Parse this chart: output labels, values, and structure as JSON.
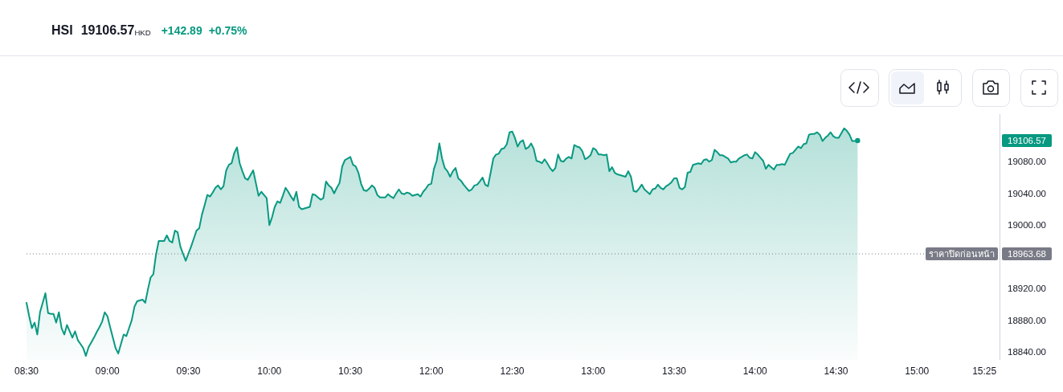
{
  "chart_data": {
    "type": "area",
    "title": "HSI",
    "subtitle": "19106.57$_{HKD}$",
    "annotations": [
      "+142.89",
      "+0.75%",
      "19106.57",
      "18963.68"
    ],
    "color": "#089981",
    "categories": [
      "08:30",
      null,
      null,
      null,
      null,
      null,
      null,
      null,
      null,
      null,
      null,
      null,
      null,
      null,
      null,
      null,
      null,
      null,
      null,
      null,
      null,
      null,
      null,
      null,
      null,
      null,
      null,
      null,
      null,
      null,
      "09:00",
      null,
      null,
      null,
      null,
      null,
      null,
      null,
      null,
      null,
      null,
      null,
      null,
      null,
      null,
      null,
      null,
      null,
      null,
      null,
      null,
      null,
      null,
      null,
      null,
      null,
      null,
      null,
      null,
      null,
      "09:30",
      null,
      null,
      null,
      null,
      null,
      null,
      null,
      null,
      null,
      null,
      null,
      null,
      null,
      null,
      null,
      null,
      null,
      null,
      null,
      null,
      null,
      null,
      null,
      null,
      null,
      null,
      null,
      null,
      null,
      "10:00",
      null,
      null,
      null,
      null,
      null,
      null,
      null,
      null,
      null,
      null,
      null,
      null,
      null,
      null,
      null,
      null,
      null,
      null,
      null,
      null,
      null,
      null,
      null,
      null,
      null,
      null,
      null,
      null,
      null,
      "10:30",
      null,
      null,
      null,
      null,
      null,
      null,
      null,
      null,
      null,
      null,
      null,
      null,
      null,
      null,
      null,
      null,
      null,
      null,
      null,
      null,
      null,
      null,
      null,
      null,
      null,
      null,
      null,
      null,
      null,
      "12:00",
      null,
      null,
      null,
      null,
      null,
      null,
      null,
      null,
      null,
      null,
      null,
      null,
      null,
      null,
      null,
      null,
      null,
      null,
      null,
      null,
      null,
      null,
      null,
      null,
      null,
      null,
      null,
      null,
      null,
      "12:30",
      null,
      null,
      null,
      null,
      null,
      null,
      null,
      null,
      null,
      null,
      null,
      null,
      null,
      null,
      null,
      null,
      null,
      null,
      null,
      null,
      null,
      null,
      null,
      null,
      null,
      null,
      null,
      null,
      null,
      "13:00",
      null,
      null,
      null,
      null,
      null,
      null,
      null,
      null,
      null,
      null,
      null,
      null,
      null,
      null,
      null,
      null,
      null,
      null,
      null,
      null,
      null,
      null,
      null,
      null,
      null,
      null,
      null,
      null,
      null,
      "13:30",
      null,
      null,
      null,
      null,
      null,
      null,
      null,
      null,
      null,
      null,
      null,
      null,
      null,
      null,
      null,
      null,
      null,
      null,
      null,
      null,
      null,
      null,
      null,
      null,
      null,
      null,
      null,
      null,
      null,
      "14:00",
      null,
      null,
      null,
      null,
      null,
      null,
      null,
      null,
      null,
      null,
      null,
      null,
      null,
      null,
      null,
      null,
      null,
      null,
      null,
      null,
      null,
      null,
      null,
      null,
      null,
      null,
      null,
      null,
      null,
      "14:30",
      null,
      null,
      null,
      null,
      null,
      null,
      null,
      null,
      null,
      null,
      null,
      null,
      null,
      null,
      null,
      null,
      null,
      null,
      null,
      null,
      null,
      null,
      null,
      null,
      null,
      null,
      null,
      null,
      null,
      "15:00",
      null,
      null,
      null,
      null,
      null,
      null,
      null,
      null,
      null,
      null,
      null,
      null,
      null,
      null,
      null,
      null,
      null,
      null,
      null,
      null,
      null,
      null,
      null,
      null,
      "15:25",
      null,
      null,
      null,
      null,
      null
    ],
    "values": [
      18902,
      18885,
      18870,
      18877,
      18862,
      18890,
      18902,
      18914,
      18889,
      18888,
      18888,
      18877,
      18890,
      18870,
      18862,
      18874,
      18866,
      18858,
      18866,
      18855,
      18850,
      18845,
      18835,
      18846,
      18852,
      18858,
      18865,
      18871,
      18878,
      18890,
      18885,
      18871,
      18858,
      18845,
      18838,
      18850,
      18862,
      18860,
      18870,
      18880,
      18897,
      18904,
      18905,
      18906,
      18902,
      18919,
      18934,
      18938,
      18963,
      18980,
      18980,
      18980,
      18987,
      18980,
      18978,
      18993,
      18991,
      18973,
      18964,
      18955,
      18964,
      18973,
      18983,
      18993,
      18996,
      19013,
      19025,
      19038,
      19036,
      19041,
      19047,
      19050,
      19045,
      19049,
      19069,
      19076,
      19078,
      19091,
      19098,
      19078,
      19068,
      19059,
      19057,
      19063,
      19069,
      19053,
      19037,
      19042,
      19038,
      19034,
      19000,
      19010,
      19023,
      19030,
      19028,
      19037,
      19047,
      19042,
      19036,
      19031,
      19042,
      19023,
      19020,
      19021,
      19022,
      19023,
      19039,
      19038,
      19035,
      19032,
      19034,
      19055,
      19050,
      19047,
      19040,
      19047,
      19053,
      19074,
      19082,
      19084,
      19086,
      19076,
      19074,
      19066,
      19052,
      19044,
      19043,
      19046,
      19050,
      19047,
      19038,
      19035,
      19035,
      19035,
      19039,
      19036,
      19034,
      19040,
      19045,
      19040,
      19039,
      19041,
      19040,
      19037,
      19038,
      19039,
      19036,
      19042,
      19046,
      19051,
      19052,
      19071,
      19081,
      19103,
      19084,
      19072,
      19068,
      19061,
      19068,
      19072,
      19059,
      19056,
      19051,
      19047,
      19043,
      19045,
      19050,
      19051,
      19055,
      19060,
      19051,
      19049,
      19066,
      19084,
      19089,
      19090,
      19096,
      19097,
      19102,
      19117,
      19118,
      19110,
      19099,
      19105,
      19107,
      19096,
      19098,
      19103,
      19096,
      19081,
      19080,
      19078,
      19083,
      19078,
      19072,
      19068,
      19072,
      19089,
      19081,
      19080,
      19084,
      19086,
      19084,
      19101,
      19099,
      19098,
      19093,
      19083,
      19085,
      19088,
      19097,
      19095,
      19089,
      19089,
      19088,
      19089,
      19068,
      19073,
      19066,
      19064,
      19063,
      19062,
      19061,
      19068,
      19061,
      19043,
      19042,
      19046,
      19051,
      19045,
      19042,
      19039,
      19045,
      19046,
      19051,
      19047,
      19045,
      19049,
      19051,
      19054,
      19059,
      19059,
      19047,
      19045,
      19048,
      19066,
      19067,
      19076,
      19077,
      19078,
      19077,
      19082,
      19083,
      19080,
      19082,
      19095,
      19092,
      19088,
      19088,
      19086,
      19084,
      19079,
      19080,
      19080,
      19084,
      19086,
      19088,
      19089,
      19085,
      19084,
      19092,
      19089,
      19085,
      19081,
      19071,
      19076,
      19073,
      19070,
      19076,
      19076,
      19077,
      19076,
      19083,
      19090,
      19091,
      19095,
      19099,
      19097,
      19102,
      19103,
      19114,
      19115,
      19115,
      19117,
      19114,
      19106,
      19110,
      19113,
      19117,
      19112,
      19110,
      19110,
      19116,
      19122,
      19119,
      19114,
      19106,
      19106,
      19106.57,
      null,
      null,
      null,
      null,
      null,
      null,
      null,
      null,
      null,
      null,
      null,
      null,
      null,
      null,
      null,
      null,
      null,
      null,
      null,
      null,
      null,
      null,
      null,
      null,
      null,
      null,
      null,
      null,
      null,
      null,
      null,
      null,
      null,
      null,
      null,
      null,
      null,
      null,
      null,
      null,
      null,
      null,
      null,
      null,
      null,
      null,
      null,
      null,
      null,
      null,
      null,
      null
    ],
    "ylim": [
      18830,
      19140
    ],
    "yticks": [
      {
        "value": 18840,
        "label": "18840.00"
      },
      {
        "value": 18880,
        "label": "18880.00"
      },
      {
        "value": 18920,
        "label": "18920.00"
      },
      {
        "value": 19000,
        "label": "19000.00"
      },
      {
        "value": 19040,
        "label": "19040.00"
      },
      {
        "value": 19080,
        "label": "19080.00"
      }
    ],
    "ref_lines": [
      {
        "axis": "y",
        "value": 18963.68,
        "label": "ราคาปิดก่อนหน้า",
        "color": "#787b86",
        "line_style": "dotted"
      }
    ]
  }
}
